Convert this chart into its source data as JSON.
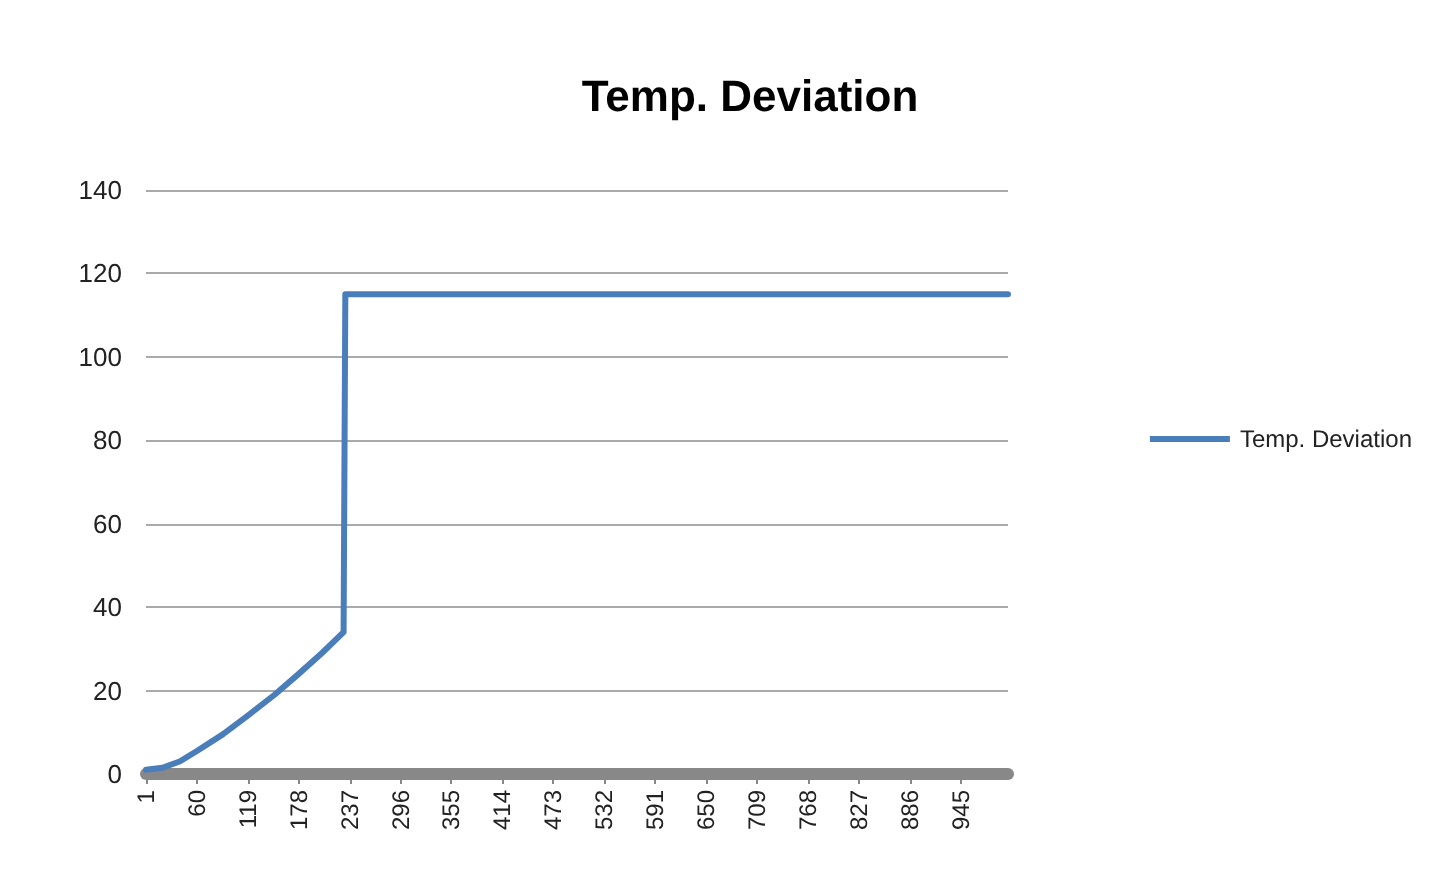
{
  "chart_data": {
    "type": "line",
    "title": "Temp. Deviation",
    "x": [
      1,
      20,
      40,
      60,
      90,
      119,
      150,
      178,
      205,
      230,
      232,
      1000
    ],
    "series": [
      {
        "name": "Temp. Deviation",
        "color": "#4a7ebb",
        "values": [
          1,
          1.5,
          3,
          5.5,
          9.5,
          14,
          19,
          24,
          29,
          34,
          115,
          115
        ]
      }
    ],
    "xlim": [
      1,
      1000
    ],
    "xticks": [
      1,
      60,
      119,
      178,
      237,
      296,
      355,
      414,
      473,
      532,
      591,
      650,
      709,
      768,
      827,
      886,
      945
    ],
    "ylim": [
      0,
      140
    ],
    "yticks": [
      0,
      20,
      40,
      60,
      80,
      100,
      120,
      140
    ],
    "grid": "y",
    "legend": "right",
    "marker": "none",
    "line_style": "solid"
  }
}
